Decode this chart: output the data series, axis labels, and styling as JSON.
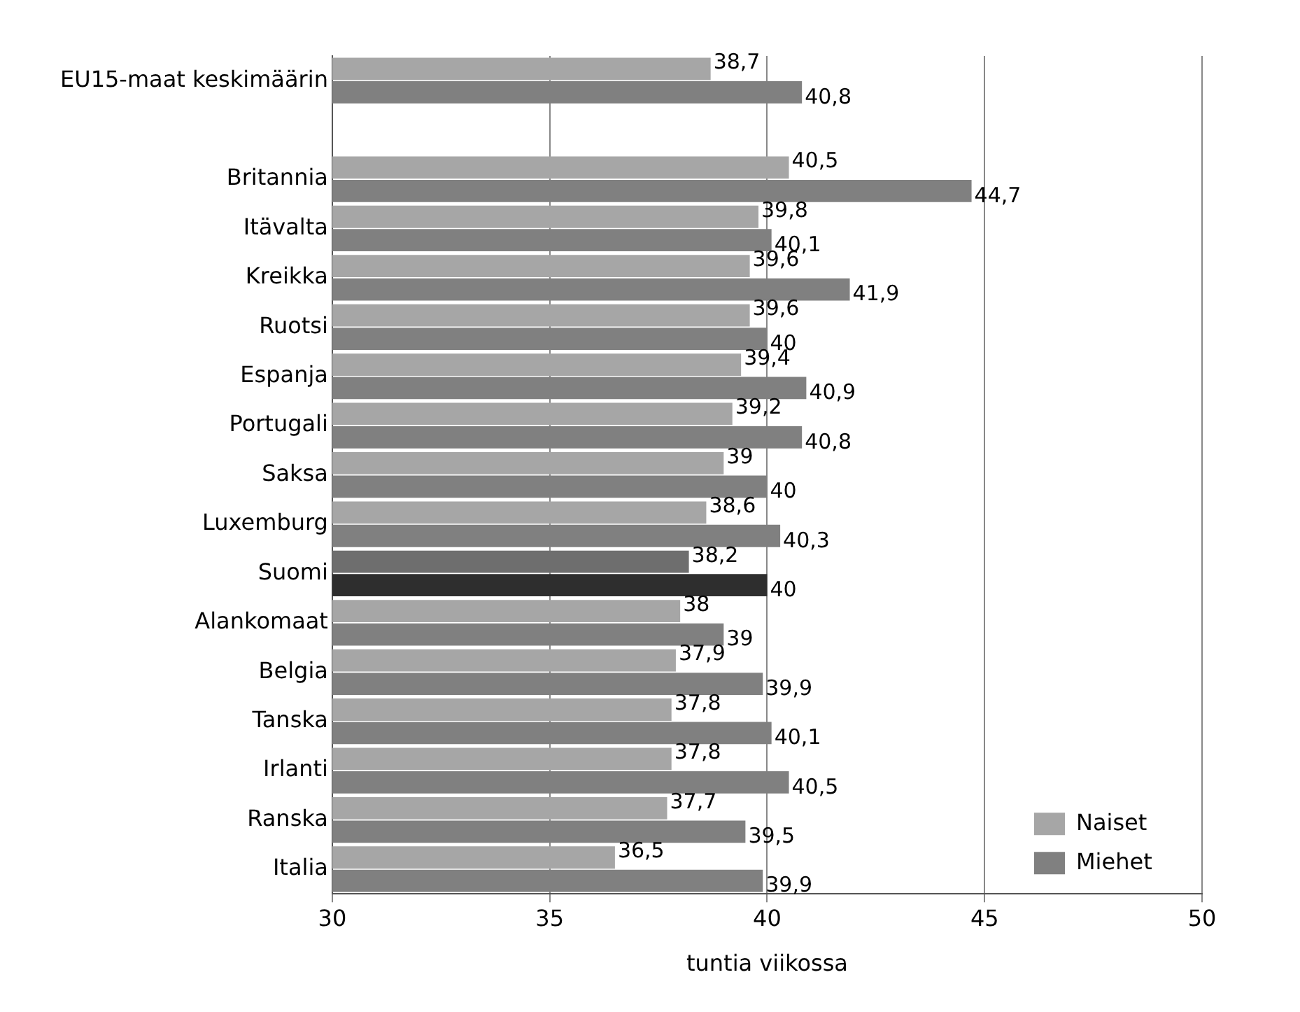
{
  "chart_data": {
    "type": "bar",
    "orientation": "horizontal",
    "xlabel": "tuntia viikossa",
    "categories": [
      "EU15-maat keskimäärin",
      null,
      "Britannia",
      "Itävalta",
      "Kreikka",
      "Ruotsi",
      "Espanja",
      "Portugali",
      "Saksa",
      "Luxemburg",
      "Suomi",
      "Alankomaat",
      "Belgia",
      "Tanska",
      "Irlanti",
      "Ranska",
      "Italia"
    ],
    "series": [
      {
        "name": "Naiset",
        "color": "#a6a6a6",
        "colors": [
          "#a6a6a6",
          null,
          "#a6a6a6",
          "#a6a6a6",
          "#a6a6a6",
          "#a6a6a6",
          "#a6a6a6",
          "#a6a6a6",
          "#a6a6a6",
          "#a6a6a6",
          "#6e6e6e",
          "#a6a6a6",
          "#a6a6a6",
          "#a6a6a6",
          "#a6a6a6",
          "#a6a6a6",
          "#a6a6a6"
        ],
        "values": [
          38.7,
          null,
          40.5,
          39.8,
          39.6,
          39.6,
          39.4,
          39.2,
          39,
          38.6,
          38.2,
          38,
          37.9,
          37.8,
          37.8,
          37.7,
          36.5
        ],
        "value_labels": [
          "38,7",
          null,
          "40,5",
          "39,8",
          "39,6",
          "39,6",
          "39,4",
          "39,2",
          "39",
          "38,6",
          "38,2",
          "38",
          "37,9",
          "37,8",
          "37,8",
          "37,7",
          "36,5"
        ]
      },
      {
        "name": "Miehet",
        "color": "#808080",
        "colors": [
          "#808080",
          null,
          "#808080",
          "#808080",
          "#808080",
          "#808080",
          "#808080",
          "#808080",
          "#808080",
          "#808080",
          "#2e2e2e",
          "#808080",
          "#808080",
          "#808080",
          "#808080",
          "#808080",
          "#808080"
        ],
        "values": [
          40.8,
          null,
          44.7,
          40.1,
          41.9,
          40,
          40.9,
          40.8,
          40,
          40.3,
          40,
          39,
          39.9,
          40.1,
          40.5,
          39.5,
          39.9
        ],
        "value_labels": [
          "40,8",
          null,
          "44,7",
          "40,1",
          "41,9",
          "40",
          "40,9",
          "40,8",
          "40",
          "40,3",
          "40",
          "39",
          "39,9",
          "40,1",
          "40,5",
          "39,5",
          "39,9"
        ]
      }
    ],
    "xlim": [
      30,
      50
    ],
    "xticks": [
      30,
      35,
      40,
      45,
      50
    ],
    "grid": "x",
    "legend": "bottom right"
  }
}
